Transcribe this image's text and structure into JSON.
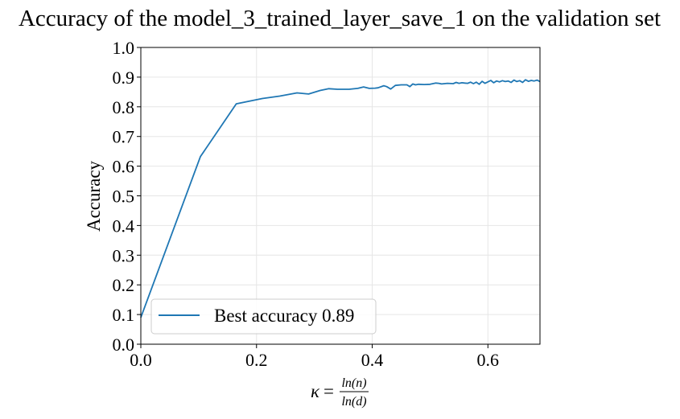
{
  "chart_data": {
    "type": "line",
    "title": "Accuracy of the model_3_trained_layer_save_1 on the validation set",
    "xlabel": {
      "symbol": "κ",
      "equals": "=",
      "numerator": "ln(n)",
      "denominator": "ln(d)"
    },
    "ylabel": "Accuracy",
    "xlim": [
      0.0,
      0.69
    ],
    "ylim": [
      0.0,
      1.0
    ],
    "xticks": [
      0.0,
      0.2,
      0.4,
      0.6
    ],
    "xtick_labels": [
      "0.0",
      "0.2",
      "0.4",
      "0.6"
    ],
    "yticks": [
      0.0,
      0.1,
      0.2,
      0.3,
      0.4,
      0.5,
      0.6,
      0.7,
      0.8,
      0.9,
      1.0
    ],
    "ytick_labels": [
      "0.0",
      "0.1",
      "0.2",
      "0.3",
      "0.4",
      "0.5",
      "0.6",
      "0.7",
      "0.8",
      "0.9",
      "1.0"
    ],
    "grid": true,
    "legend_position": "lower-left",
    "series": [
      {
        "name": "Best accuracy 0.89",
        "color": "#1f77b4",
        "x": [
          0.0,
          0.103,
          0.165,
          0.21,
          0.24,
          0.27,
          0.29,
          0.31,
          0.325,
          0.34,
          0.36,
          0.375,
          0.385,
          0.395,
          0.405,
          0.41,
          0.42,
          0.425,
          0.432,
          0.44,
          0.45,
          0.46,
          0.465,
          0.47,
          0.475,
          0.48,
          0.49,
          0.5,
          0.51,
          0.515,
          0.52,
          0.53,
          0.54,
          0.545,
          0.55,
          0.555,
          0.56,
          0.565,
          0.57,
          0.575,
          0.58,
          0.585,
          0.59,
          0.595,
          0.6,
          0.605,
          0.61,
          0.615,
          0.62,
          0.625,
          0.63,
          0.635,
          0.64,
          0.645,
          0.65,
          0.655,
          0.66,
          0.665,
          0.67,
          0.675,
          0.68,
          0.685,
          0.69
        ],
        "y": [
          0.09,
          0.632,
          0.81,
          0.828,
          0.836,
          0.847,
          0.843,
          0.855,
          0.861,
          0.859,
          0.859,
          0.862,
          0.867,
          0.862,
          0.863,
          0.864,
          0.871,
          0.868,
          0.86,
          0.872,
          0.874,
          0.874,
          0.868,
          0.877,
          0.874,
          0.876,
          0.875,
          0.876,
          0.88,
          0.879,
          0.877,
          0.879,
          0.878,
          0.882,
          0.879,
          0.881,
          0.88,
          0.879,
          0.883,
          0.878,
          0.883,
          0.876,
          0.886,
          0.879,
          0.884,
          0.889,
          0.881,
          0.887,
          0.884,
          0.888,
          0.885,
          0.887,
          0.882,
          0.89,
          0.885,
          0.888,
          0.882,
          0.891,
          0.886,
          0.889,
          0.887,
          0.89,
          0.885
        ]
      }
    ]
  }
}
